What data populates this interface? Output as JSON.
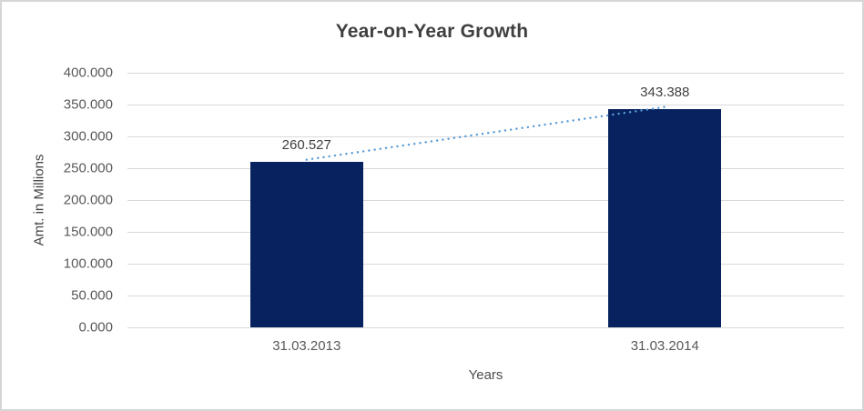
{
  "chart_data": {
    "type": "bar",
    "title": "Year-on-Year Growth",
    "xlabel": "Years",
    "ylabel": "Amt. in Millions",
    "categories": [
      "31.03.2013",
      "31.03.2014"
    ],
    "series": [
      {
        "name": "Amt. in Millions",
        "values": [
          260.527,
          343.388
        ]
      }
    ],
    "data_labels": [
      "260.527",
      "343.388"
    ],
    "y_tick_values": [
      0,
      50,
      100,
      150,
      200,
      250,
      300,
      350,
      400
    ],
    "y_tick_labels": [
      "0.000",
      "50.000",
      "100.000",
      "150.000",
      "200.000",
      "250.000",
      "300.000",
      "350.000",
      "400.000"
    ],
    "ylim": [
      0,
      400
    ],
    "grid": "horizontal",
    "legend": "none",
    "trendline": {
      "style": "dotted",
      "connects": [
        "31.03.2013",
        "31.03.2014"
      ],
      "from_value": 260.527,
      "to_value": 343.388
    }
  },
  "colors": {
    "bar_fill": "#07225f",
    "trendline": "#5b9bd5",
    "gridline": "#d9d9d9",
    "tick_label": "#595959",
    "data_label": "#404040",
    "title": "#3f3f3f",
    "axis_title": "#474747",
    "background": "#ffffff",
    "frame_border": "#d6d6d6"
  }
}
